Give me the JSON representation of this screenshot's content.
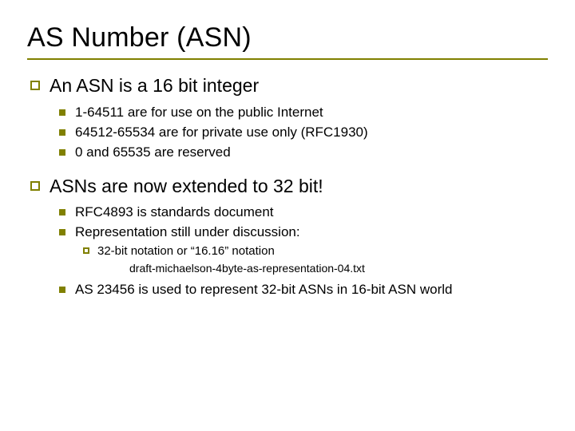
{
  "title": "AS Number (ASN)",
  "accent_color": "#808000",
  "body": {
    "point1": {
      "text": "An ASN is a 16 bit integer",
      "sub": [
        "1-64511 are for use on the public Internet",
        "64512-65534 are for private use only (RFC1930)",
        "0 and 65535 are reserved"
      ]
    },
    "point2": {
      "text": "ASNs are now extended to 32 bit!",
      "sub1": "RFC4893 is standards document",
      "sub2": "Representation still under discussion:",
      "sub2_child": "32-bit notation or “16.16” notation",
      "sub2_draft": "draft-michaelson-4byte-as-representation-04.txt",
      "sub3": "AS 23456 is used to represent 32-bit ASNs in 16-bit ASN world"
    }
  }
}
